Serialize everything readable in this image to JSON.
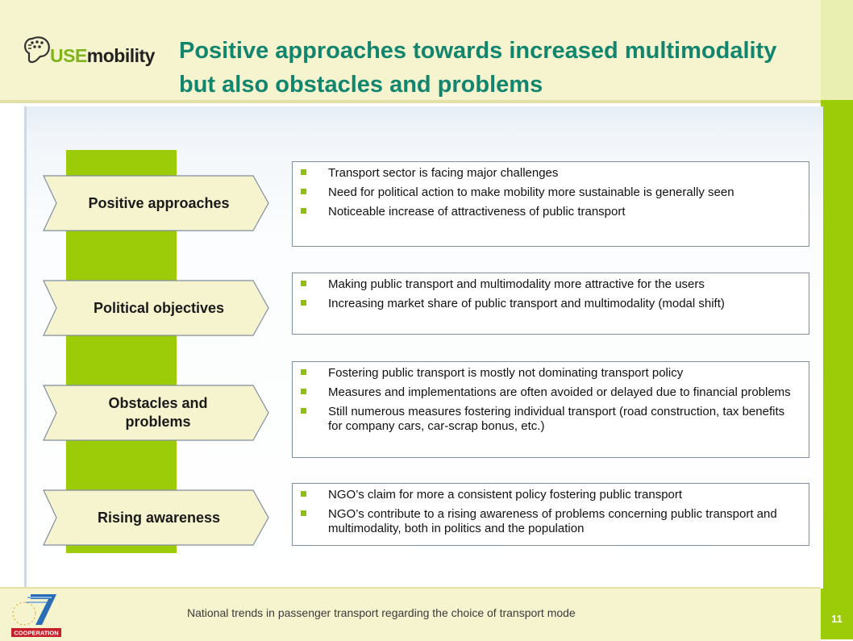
{
  "header": {
    "logo_text_a": "USE",
    "logo_text_b": "mobility",
    "title": "Positive approaches towards increased multimodality but also obstacles and problems"
  },
  "sections": [
    {
      "label": "Positive approaches",
      "bullets": [
        "Transport sector is facing major challenges",
        "Need for political action to make mobility more sustainable is generally seen",
        "Noticeable increase of attractiveness of public transport"
      ]
    },
    {
      "label": "Political objectives",
      "bullets": [
        "Making public transport and multimodality more attractive for the users",
        "Increasing market share of public transport and multimodality (modal shift)"
      ]
    },
    {
      "label": "Obstacles and problems",
      "bullets": [
        "Fostering public transport is mostly not dominating transport policy",
        "Measures and implementations are often avoided or delayed due to financial problems",
        "Still numerous measures fostering individual transport (road construction, tax benefits for company cars, car-scrap bonus, etc.)"
      ]
    },
    {
      "label": "Rising awareness",
      "bullets": [
        "NGO’s claim for more a consistent policy fostering public transport",
        "NGO’s contribute to a rising awareness of problems concerning public transport and multimodality, both in politics and the population"
      ]
    }
  ],
  "footer": {
    "text": "National trends in passenger transport regarding the choice of transport mode",
    "page_number": "11",
    "fp7_label": "COOPERATION"
  },
  "colors": {
    "title": "#12856e",
    "accent_green": "#9ccc08",
    "header_bg": "#f6f4cf",
    "arrow_fill": "#f6f4cf"
  }
}
